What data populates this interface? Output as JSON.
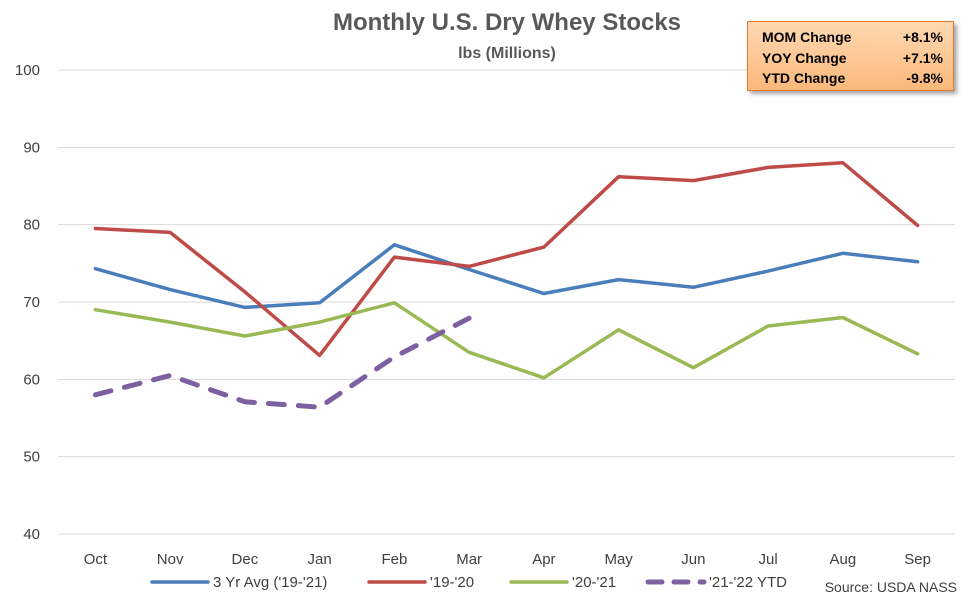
{
  "chart_data": {
    "type": "line",
    "title": "Monthly U.S. Dry Whey Stocks",
    "subtitle": "lbs (Millions)",
    "categories": [
      "Oct",
      "Nov",
      "Dec",
      "Jan",
      "Feb",
      "Mar",
      "Apr",
      "May",
      "Jun",
      "Jul",
      "Aug",
      "Sep"
    ],
    "ylim": [
      40,
      100
    ],
    "yticks": [
      40,
      50,
      60,
      70,
      80,
      90,
      100
    ],
    "grid": true,
    "legend_position": "bottom",
    "series": [
      {
        "name": "3 Yr Avg ('19-'21)",
        "color": "#4a7ebb",
        "dash": false,
        "values": [
          74.3,
          71.6,
          69.3,
          69.9,
          77.4,
          74.2,
          71.1,
          72.9,
          71.9,
          74.0,
          76.3,
          75.2
        ]
      },
      {
        "name": "'19-'20",
        "color": "#be4b48",
        "dash": false,
        "values": [
          79.5,
          79.0,
          71.3,
          63.1,
          75.8,
          74.6,
          77.1,
          86.2,
          85.7,
          87.4,
          88.0,
          79.9
        ]
      },
      {
        "name": "'20-'21",
        "color": "#98b954",
        "dash": false,
        "values": [
          69.0,
          67.4,
          65.6,
          67.4,
          69.9,
          63.5,
          60.2,
          66.4,
          61.5,
          66.9,
          68.0,
          63.3
        ]
      },
      {
        "name": "'21-'22 YTD",
        "color": "#7d60a0",
        "dash": true,
        "values": [
          58.0,
          60.5,
          57.1,
          56.4,
          62.9,
          67.9,
          null,
          null,
          null,
          null,
          null,
          null
        ]
      }
    ],
    "annotations": {
      "stats": [
        {
          "label": "MOM Change",
          "value": "+8.1%"
        },
        {
          "label": "YOY Change",
          "value": "+7.1%"
        },
        {
          "label": "YTD Change",
          "value": "-9.8%"
        }
      ],
      "source": "Source: USDA NASS"
    }
  }
}
